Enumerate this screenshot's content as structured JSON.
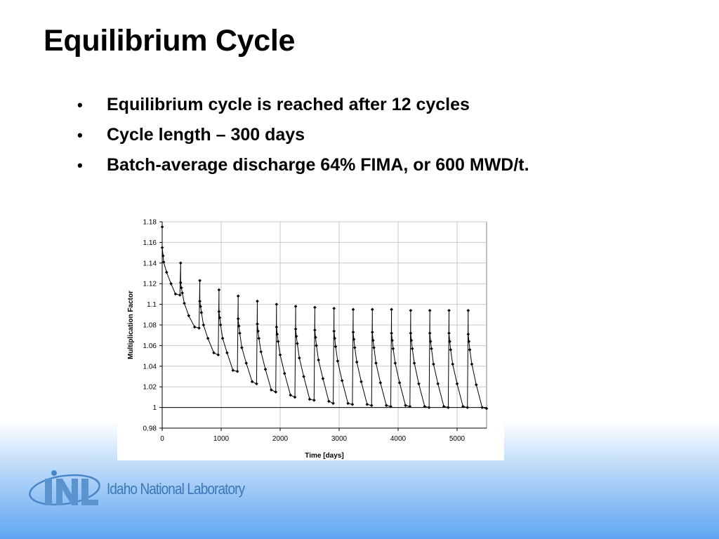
{
  "slide": {
    "title": "Equilibrium Cycle",
    "bullets": [
      "Equilibrium cycle is reached after 12 cycles",
      "Cycle length – 300 days",
      "Batch-average discharge 64% FIMA, or 600 MWD/t."
    ]
  },
  "logo": {
    "mark_text": "INL",
    "name": "Idaho National Laboratory"
  },
  "chart_data": {
    "type": "line",
    "title": "",
    "xlabel": "Time [days]",
    "ylabel": "Multiplication Factor",
    "xlim": [
      0,
      5500
    ],
    "ylim": [
      0.98,
      1.18
    ],
    "x_ticks": [
      "0",
      "1000",
      "2000",
      "3000",
      "4000",
      "5000"
    ],
    "y_ticks": [
      "0.98",
      "1",
      "1.02",
      "1.04",
      "1.06",
      "1.08",
      "1.1",
      "1.12",
      "1.14",
      "1.16",
      "1.18"
    ],
    "grid": true,
    "reference_line_y": 1.0,
    "series": [
      {
        "name": "",
        "x": [
          0,
          0,
          15,
          25,
          75,
          150,
          225,
          300,
          313,
          313,
          325,
          340,
          375,
          450,
          550,
          625,
          638,
          638,
          650,
          665,
          700,
          775,
          875,
          950,
          963,
          963,
          975,
          990,
          1025,
          1100,
          1200,
          1275,
          1288,
          1288,
          1300,
          1315,
          1350,
          1425,
          1525,
          1600,
          1613,
          1613,
          1625,
          1640,
          1675,
          1750,
          1850,
          1925,
          1938,
          1938,
          1950,
          1965,
          2000,
          2075,
          2175,
          2250,
          2263,
          2263,
          2275,
          2290,
          2325,
          2400,
          2500,
          2575,
          2588,
          2588,
          2600,
          2615,
          2650,
          2725,
          2825,
          2900,
          2913,
          2913,
          2925,
          2940,
          2975,
          3050,
          3150,
          3225,
          3238,
          3238,
          3250,
          3265,
          3300,
          3375,
          3475,
          3550,
          3563,
          3563,
          3575,
          3590,
          3625,
          3700,
          3800,
          3875,
          3888,
          3888,
          3900,
          3915,
          3950,
          4025,
          4125,
          4200,
          4213,
          4213,
          4225,
          4240,
          4275,
          4350,
          4450,
          4525,
          4538,
          4538,
          4550,
          4565,
          4600,
          4675,
          4775,
          4850,
          4863,
          4863,
          4875,
          4890,
          4925,
          5000,
          5100,
          5175,
          5188,
          5188,
          5200,
          5215,
          5250,
          5325,
          5425,
          5500
        ],
        "y": [
          1.175,
          1.155,
          1.147,
          1.141,
          1.131,
          1.12,
          1.11,
          1.109,
          1.14,
          1.121,
          1.116,
          1.111,
          1.101,
          1.089,
          1.078,
          1.077,
          1.123,
          1.103,
          1.098,
          1.092,
          1.08,
          1.067,
          1.053,
          1.051,
          1.114,
          1.093,
          1.087,
          1.08,
          1.067,
          1.053,
          1.036,
          1.035,
          1.108,
          1.086,
          1.079,
          1.072,
          1.058,
          1.043,
          1.025,
          1.023,
          1.103,
          1.081,
          1.074,
          1.067,
          1.054,
          1.037,
          1.017,
          1.015,
          1.1,
          1.078,
          1.071,
          1.064,
          1.051,
          1.033,
          1.012,
          1.01,
          1.098,
          1.076,
          1.069,
          1.062,
          1.048,
          1.03,
          1.008,
          1.007,
          1.097,
          1.075,
          1.068,
          1.06,
          1.046,
          1.028,
          1.006,
          1.004,
          1.096,
          1.074,
          1.067,
          1.059,
          1.045,
          1.026,
          1.004,
          1.003,
          1.095,
          1.073,
          1.066,
          1.058,
          1.044,
          1.025,
          1.003,
          1.002,
          1.095,
          1.073,
          1.065,
          1.058,
          1.043,
          1.024,
          1.002,
          1.001,
          1.095,
          1.072,
          1.065,
          1.057,
          1.043,
          1.024,
          1.002,
          1.001,
          1.094,
          1.072,
          1.065,
          1.057,
          1.043,
          1.023,
          1.001,
          1.0,
          1.094,
          1.072,
          1.064,
          1.057,
          1.042,
          1.023,
          1.001,
          1.0,
          1.094,
          1.072,
          1.064,
          1.056,
          1.042,
          1.023,
          1.001,
          1.0,
          1.094,
          1.071,
          1.064,
          1.056,
          1.042,
          1.022,
          1.0,
          0.999
        ]
      }
    ]
  }
}
